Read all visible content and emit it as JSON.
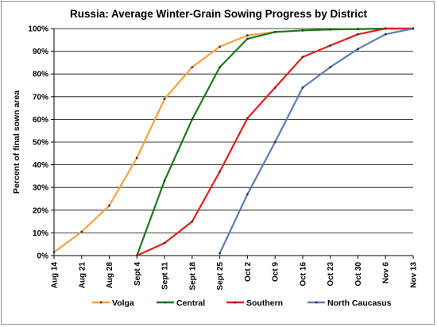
{
  "chart_data": {
    "type": "line",
    "title": "Russia:  Average Winter-Grain Sowing Progress by District",
    "xlabel": "",
    "ylabel": "Percent of final sown area",
    "categories": [
      "Aug 14",
      "Aug 21",
      "Aug 28",
      "Sept 4",
      "Sept 11",
      "Sept 18",
      "Sept 25",
      "Oct 2",
      "Oct 9",
      "Oct 16",
      "Oct 23",
      "Oct 30",
      "Nov 6",
      "Nov 13"
    ],
    "yticks": [
      "0%",
      "10%",
      "20%",
      "30%",
      "40%",
      "50%",
      "60%",
      "70%",
      "80%",
      "90%",
      "100%"
    ],
    "ylim": [
      0,
      100
    ],
    "grid": "horizontal",
    "legend_position": "bottom",
    "series": [
      {
        "name": "Volga",
        "color": "#f7a040",
        "values": [
          1.5,
          10.5,
          22,
          43,
          69,
          83,
          92,
          97,
          98.5,
          99.2,
          99.6,
          99.8,
          100,
          100
        ]
      },
      {
        "name": "Central",
        "color": "#1a7a1a",
        "values": [
          null,
          null,
          null,
          0,
          33,
          60,
          83,
          95.5,
          98.5,
          99.2,
          99.6,
          99.8,
          100,
          100
        ]
      },
      {
        "name": "Southern",
        "color": "#e61e1e",
        "values": [
          null,
          null,
          null,
          0,
          5.5,
          15,
          37,
          60.5,
          74,
          87.5,
          92.5,
          97.5,
          100,
          100
        ]
      },
      {
        "name": "North Caucasus",
        "color": "#5a7db5",
        "values": [
          null,
          null,
          null,
          null,
          null,
          null,
          1,
          27,
          50,
          74,
          83,
          91,
          97.5,
          100
        ]
      }
    ]
  }
}
